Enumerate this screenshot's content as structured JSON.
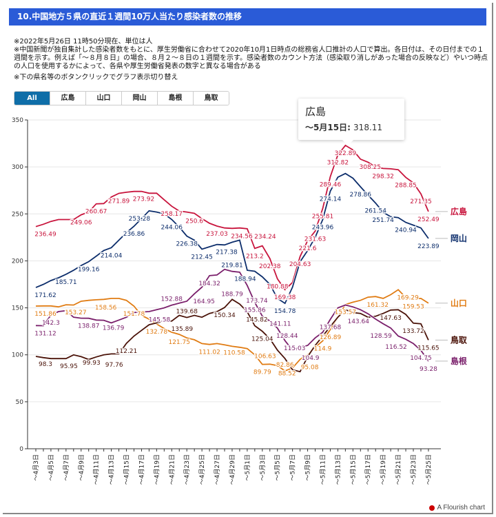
{
  "header": {
    "title": "10.中国地方５県の直近１週間10万人当たり感染者数の推移"
  },
  "notes": [
    "※2022年5月26日 11時50分現在、単位は人",
    "※中国新聞が独自集計した感染者数をもとに、厚生労働省に合わせて2020年10月1日時点の総務省人口推計の人口で算出。各日付は、その日付までの１週間を示す。例えば「～８月８日」の場合、８月２～８日の１週間を示す。感染者数のカウント方法（感染取り消しがあった場合の反映など）やいつ時点の人口を使用するかによって、各県や厚生労働省発表の数字と異なる場合がある",
    "※下の県名等のボタンクリックでグラフ表示切り替え"
  ],
  "buttons": [
    {
      "label": "All",
      "active": true
    },
    {
      "label": "広島",
      "active": false
    },
    {
      "label": "山口",
      "active": false
    },
    {
      "label": "岡山",
      "active": false
    },
    {
      "label": "島根",
      "active": false
    },
    {
      "label": "鳥取",
      "active": false
    }
  ],
  "tooltip": {
    "series": "広島",
    "date": "〜5月15日",
    "value": "318.11"
  },
  "footer": {
    "label": "A Flourish chart"
  },
  "chart_data": {
    "type": "line",
    "title": "",
    "xlabel": "",
    "ylabel": "",
    "ylim": [
      0,
      350
    ],
    "yticks": [
      0,
      50,
      100,
      150,
      200,
      250,
      300,
      350
    ],
    "grid": true,
    "x_start": "4月3日",
    "x_end": "5月25日",
    "x_tick_labels": [
      "～4月3日",
      "～4月5日",
      "～4月7日",
      "～4月9日",
      "～4月11日",
      "～4月13日",
      "～4月15日",
      "～4月17日",
      "～4月19日",
      "～4月21日",
      "～4月23日",
      "～4月25日",
      "～4月27日",
      "～4月29日",
      "～5月1日",
      "～5月3日",
      "～5月5日",
      "～5月7日",
      "～5月9日",
      "～5月11日",
      "～5月13日",
      "～5月15日",
      "～5月17日",
      "～5月19日",
      "～5月21日",
      "～5月23日",
      "～5月25日"
    ],
    "series": [
      {
        "name": "広島",
        "color": "#c8143c",
        "values": [
          236.49,
          239,
          242,
          244,
          244,
          244,
          249.06,
          252,
          260.67,
          261,
          268,
          271.89,
          273,
          273.92,
          274,
          272,
          272,
          265,
          258.17,
          253,
          252,
          250.6,
          245,
          240,
          237.03,
          235,
          234.56,
          235,
          234.24,
          213.2,
          216,
          202.38,
          180.88,
          169.38,
          177,
          204.63,
          221.6,
          231.63,
          255.81,
          289.46,
          312.82,
          322.89,
          318.11,
          308.25,
          305,
          300,
          298.32,
          298,
          297,
          288.85,
          283,
          271.35,
          252.49
        ],
        "labels": [
          0,
          6,
          8,
          11,
          13,
          18,
          21,
          24,
          26,
          28,
          29,
          31,
          32,
          33,
          35,
          36,
          37,
          38,
          39,
          40,
          41,
          43,
          46,
          49,
          51,
          52
        ]
      },
      {
        "name": "岡山",
        "color": "#0c2d6b",
        "values": [
          171.62,
          175,
          179,
          182,
          185.71,
          190,
          195,
          199.16,
          205,
          211,
          214.04,
          222,
          230,
          236.86,
          245,
          253.28,
          252,
          250,
          244.06,
          236,
          226.38,
          222,
          212.45,
          215,
          217.38,
          217,
          219.81,
          222,
          190,
          188.94,
          183,
          175,
          160,
          154.78,
          172,
          199,
          211,
          225,
          243.96,
          274.14,
          289,
          293,
          288,
          278.86,
          270,
          261.54,
          251.74,
          247,
          246,
          240.94,
          238,
          235,
          223.89
        ],
        "labels": [
          0,
          4,
          7,
          10,
          13,
          15,
          18,
          20,
          22,
          24,
          26,
          29,
          33,
          38,
          39,
          43,
          45,
          46,
          49,
          52
        ]
      },
      {
        "name": "山口",
        "color": "#e07b12",
        "values": [
          151.86,
          152,
          152,
          151,
          153.27,
          153,
          157,
          158,
          158.56,
          159,
          160,
          160,
          158,
          151.78,
          142,
          138,
          132.78,
          128,
          124,
          121.75,
          118,
          116,
          112,
          111.02,
          112,
          110.58,
          109,
          108,
          106.63,
          100,
          89.79,
          90,
          88.52,
          82.86,
          86,
          95.08,
          100,
          108,
          114.9,
          126.89,
          140,
          153.57,
          156,
          158,
          161.32,
          162,
          160,
          164,
          169.29,
          161,
          159.53,
          160,
          155
        ],
        "labels": [
          0,
          4,
          8,
          13,
          16,
          19,
          23,
          25,
          28,
          30,
          32,
          33,
          35,
          38,
          39,
          41,
          44,
          48,
          50
        ]
      },
      {
        "name": "鳥取",
        "color": "#4a1208",
        "values": [
          98.3,
          97,
          95.95,
          96,
          96,
          99.93,
          98,
          95,
          97.76,
          100,
          101,
          101,
          112.21,
          120,
          126,
          132,
          134,
          135.89,
          136,
          142,
          139.68,
          142,
          140,
          144,
          146,
          150.34,
          159,
          154,
          145.82,
          131,
          125.04,
          117,
          105,
          96,
          84,
          82,
          98,
          110,
          120,
          130,
          140,
          148,
          145,
          144,
          140,
          141,
          144,
          147.63,
          148,
          143,
          133.72,
          133,
          115.65
        ],
        "labels": [
          0,
          2,
          5,
          8,
          12,
          17,
          20,
          25,
          28,
          30,
          47,
          50,
          52
        ]
      },
      {
        "name": "島根",
        "color": "#7a1f6b",
        "values": [
          131.12,
          131,
          142.3,
          146,
          147,
          140,
          139,
          138.87,
          137,
          136.79,
          134,
          137,
          140,
          145,
          145.58,
          146,
          148,
          150,
          152.88,
          155,
          157,
          164.95,
          172,
          184.32,
          185,
          191,
          188.79,
          188,
          173.74,
          155.86,
          141.11,
          136,
          128.44,
          115.03,
          104.9,
          108,
          110,
          118,
          124,
          137.68,
          150,
          153,
          151,
          148,
          143.64,
          138,
          133,
          128.59,
          120,
          116.52,
          112,
          104.75,
          93.28
        ],
        "labels": [
          0,
          2,
          7,
          9,
          14,
          18,
          21,
          23,
          26,
          28,
          29,
          30,
          32,
          33,
          34,
          39,
          44,
          47,
          49,
          51,
          52
        ]
      }
    ]
  }
}
